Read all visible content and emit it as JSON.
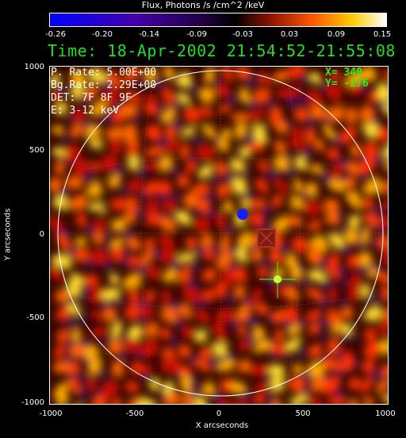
{
  "colorbar": {
    "title": "Flux, Photons /s /cm^2 /keV",
    "ticks": [
      "-0.26",
      "-0.20",
      "-0.14",
      "-0.09",
      "-0.03",
      "0.03",
      "0.09",
      "0.15"
    ]
  },
  "header": {
    "time": "Time: 18-Apr-2002 21:54:52-21:55:08"
  },
  "info": {
    "p_rate": "P. Rate:  5.00E+00",
    "bg_rate": "Bg.Rate:  2.29E+00",
    "det": "DET: 7F 8F 9F",
    "energy": "E: 3-12 keV"
  },
  "cursor": {
    "x": "X=  340",
    "y": "Y= -276"
  },
  "axes": {
    "xlabel": "X arcseconds",
    "ylabel": "Y arcseconds",
    "xticks": [
      "-1000",
      "-500",
      "0",
      "500",
      "1000"
    ],
    "yticks": [
      "1000",
      "500",
      "0",
      "-500",
      "-1000"
    ]
  },
  "colors": {
    "text": "#ffffff",
    "accent_green": "#22dd22",
    "limb": "#ffffff"
  }
}
